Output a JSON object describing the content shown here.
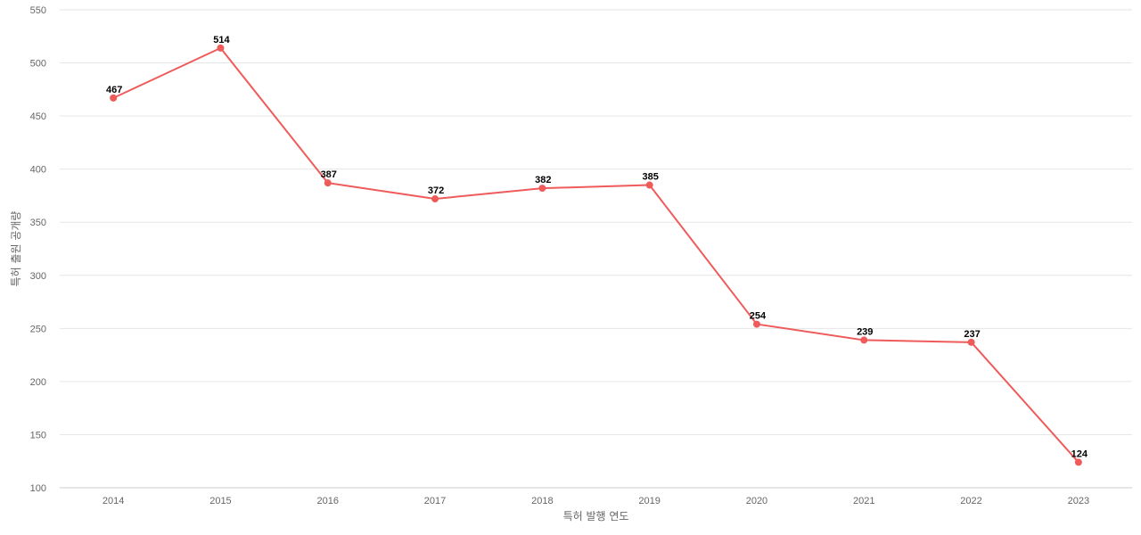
{
  "chart_data": {
    "type": "line",
    "title": "",
    "xlabel": "특허 발행 연도",
    "ylabel": "특허 출원 공개량",
    "categories": [
      "2014",
      "2015",
      "2016",
      "2017",
      "2018",
      "2019",
      "2020",
      "2021",
      "2022",
      "2023"
    ],
    "series": [
      {
        "values": [
          467,
          514,
          387,
          372,
          382,
          385,
          254,
          239,
          237,
          124
        ],
        "color": "#ef5b5b"
      }
    ],
    "ylim": [
      100,
      550
    ],
    "yticks": [
      100,
      150,
      200,
      250,
      300,
      350,
      400,
      450,
      500,
      550
    ],
    "grid": true,
    "data_labels": true
  }
}
